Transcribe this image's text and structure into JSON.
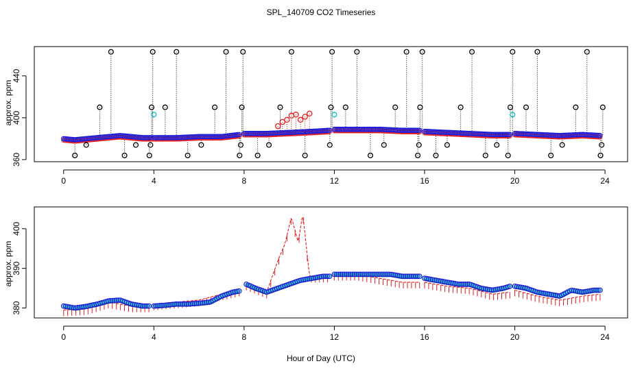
{
  "figure": {
    "title": "SPL_140709  CO2 Timeseries",
    "xlabel": "Hour of Day (UTC)"
  },
  "colors": {
    "black_obs": "#000000",
    "cyan_obs": "#00bfbf",
    "red_obs": "#e41a1c",
    "blue_obs": "#1f1fd6",
    "green_obs": "#22aa22"
  },
  "chart_data": [
    {
      "type": "scatter",
      "panel": "top",
      "xlabel": "",
      "ylabel": "approx. ppm",
      "xlim": [
        -1.3,
        25.0
      ],
      "ylim": [
        358,
        468
      ],
      "xticks": [
        0,
        4,
        8,
        12,
        16,
        20,
        24
      ],
      "yticks": [
        360,
        400,
        440
      ],
      "grid": false,
      "baseline": {
        "name": "blue/red trace",
        "segments": [
          {
            "x": [
              0.0,
              0.5,
              1.0,
              1.5,
              2.0,
              2.5,
              3.0,
              3.5,
              3.9
            ],
            "y": [
              380,
              379,
              380,
              381,
              382,
              383,
              382,
              381,
              381
            ]
          },
          {
            "x": [
              4.0,
              5.0,
              6.0,
              7.0,
              7.8
            ],
            "y": [
              381,
              381,
              382,
              382,
              384
            ]
          },
          {
            "x": [
              8.0,
              9.0,
              10.0,
              11.0,
              11.8
            ],
            "y": [
              385,
              385,
              386,
              387,
              388
            ]
          },
          {
            "x": [
              12.0,
              13.0,
              14.0,
              15.0,
              15.8
            ],
            "y": [
              389,
              389,
              389,
              388,
              388
            ]
          },
          {
            "x": [
              16.0,
              17.0,
              18.0,
              19.0,
              19.8
            ],
            "y": [
              387,
              386,
              385,
              384,
              384
            ]
          },
          {
            "x": [
              20.0,
              21.0,
              22.0,
              23.0,
              23.8
            ],
            "y": [
              385,
              384,
              383,
              384,
              383
            ]
          }
        ]
      },
      "spikes": {
        "name": "black points with dotted drop lines",
        "x": [
          0.5,
          1.0,
          1.6,
          2.1,
          2.7,
          3.2,
          3.8,
          3.85,
          3.9,
          3.95,
          4.5,
          5.0,
          5.5,
          6.1,
          6.7,
          7.2,
          7.8,
          7.85,
          7.9,
          7.95,
          8.6,
          9.1,
          9.6,
          10.1,
          10.7,
          11.8,
          11.85,
          11.9,
          12.5,
          13.0,
          13.6,
          14.2,
          14.7,
          15.2,
          15.7,
          15.75,
          15.8,
          15.9,
          16.5,
          17.0,
          17.6,
          18.1,
          18.7,
          19.2,
          19.7,
          19.8,
          19.9,
          20.5,
          21.0,
          21.6,
          22.1,
          22.7,
          23.2,
          23.8,
          23.85,
          23.9
        ],
        "y": [
          364,
          374,
          410,
          463,
          364,
          374,
          364,
          374,
          410,
          463,
          410,
          463,
          364,
          374,
          410,
          463,
          364,
          374,
          410,
          463,
          364,
          374,
          410,
          463,
          364,
          374,
          410,
          463,
          410,
          463,
          364,
          374,
          410,
          463,
          364,
          374,
          410,
          463,
          364,
          374,
          410,
          463,
          364,
          374,
          364,
          410,
          463,
          410,
          463,
          364,
          374,
          410,
          463,
          364,
          374,
          410
        ]
      },
      "cyan_points": {
        "x": [
          4.0,
          12.0,
          19.9
        ],
        "y": [
          403,
          403,
          403
        ]
      },
      "red_excursion": {
        "x": [
          9.5,
          9.7,
          9.9,
          10.1,
          10.3,
          10.5,
          10.7,
          10.9
        ],
        "y": [
          392,
          396,
          398,
          402,
          403,
          398,
          401,
          404
        ]
      }
    },
    {
      "type": "line",
      "panel": "bottom",
      "xlabel": "Hour of Day (UTC)",
      "ylabel": "approx. ppm",
      "xlim": [
        -1.3,
        25.0
      ],
      "ylim": [
        377.5,
        405.5
      ],
      "xticks": [
        0,
        4,
        8,
        12,
        16,
        20,
        24
      ],
      "yticks": [
        380,
        390,
        400
      ],
      "grid": false,
      "series": [
        {
          "name": "blue/cyan circles",
          "segments": [
            {
              "x": [
                0.0,
                0.5,
                1.0,
                1.5,
                2.0,
                2.5,
                3.0,
                3.5,
                3.8
              ],
              "y": [
                380.5,
                380.0,
                380.4,
                381.0,
                381.8,
                382.0,
                381.0,
                380.5,
                380.5
              ]
            },
            {
              "x": [
                4.0,
                4.5,
                5.0,
                5.5,
                6.0,
                6.5,
                7.0,
                7.5,
                7.8
              ],
              "y": [
                380.5,
                380.7,
                381.0,
                381.0,
                381.2,
                381.5,
                383.0,
                384.0,
                384.3
              ]
            },
            {
              "x": [
                8.1,
                8.5,
                9.0,
                9.5,
                10.0,
                10.5,
                11.0,
                11.5,
                11.8
              ],
              "y": [
                386.0,
                385.0,
                384.0,
                385.0,
                386.0,
                387.0,
                387.5,
                388.0,
                388.0
              ]
            },
            {
              "x": [
                12.0,
                12.5,
                13.0,
                13.5,
                14.0,
                14.5,
                15.0,
                15.5,
                15.8
              ],
              "y": [
                388.5,
                388.5,
                388.5,
                388.5,
                388.5,
                388.5,
                388.0,
                388.0,
                388.0
              ]
            },
            {
              "x": [
                16.0,
                16.5,
                17.0,
                17.5,
                18.0,
                18.5,
                19.0,
                19.5,
                19.8
              ],
              "y": [
                387.5,
                387.0,
                386.5,
                386.0,
                386.0,
                385.0,
                384.5,
                385.0,
                385.5
              ]
            },
            {
              "x": [
                20.0,
                20.5,
                21.0,
                21.5,
                22.0,
                22.5,
                23.0,
                23.5,
                23.8
              ],
              "y": [
                385.5,
                385.0,
                384.0,
                383.5,
                383.0,
                384.5,
                384.0,
                384.5,
                384.5
              ]
            }
          ]
        },
        {
          "name": "red dashed trace",
          "segments": [
            {
              "x": [
                0.0,
                1.0,
                2.0,
                3.0,
                3.8
              ],
              "y": [
                379.5,
                379.8,
                381.5,
                380.5,
                380.5
              ]
            },
            {
              "x": [
                4.0,
                5.0,
                6.0,
                7.0,
                7.8
              ],
              "y": [
                381.0,
                381.5,
                382.0,
                383.5,
                384.5
              ]
            },
            {
              "x": [
                8.1,
                9.0,
                9.5,
                9.8,
                10.1,
                10.4,
                10.6,
                10.9,
                11.0,
                11.2,
                11.8
              ],
              "y": [
                386.0,
                384.0,
                392.0,
                396.0,
                403.0,
                396.5,
                404.0,
                388.0,
                388.0,
                388.0,
                388.0
              ]
            },
            {
              "x": [
                12.0,
                13.0,
                14.0,
                15.0,
                15.8
              ],
              "y": [
                388.5,
                388.5,
                387.5,
                386.5,
                386.5
              ]
            },
            {
              "x": [
                16.0,
                17.0,
                18.0,
                19.0,
                19.8
              ],
              "y": [
                386.5,
                385.5,
                385.0,
                383.5,
                384.0
              ]
            },
            {
              "x": [
                20.0,
                21.0,
                22.0,
                23.0,
                23.8
              ],
              "y": [
                384.5,
                383.0,
                382.0,
                383.0,
                383.5
              ]
            }
          ]
        }
      ]
    }
  ]
}
